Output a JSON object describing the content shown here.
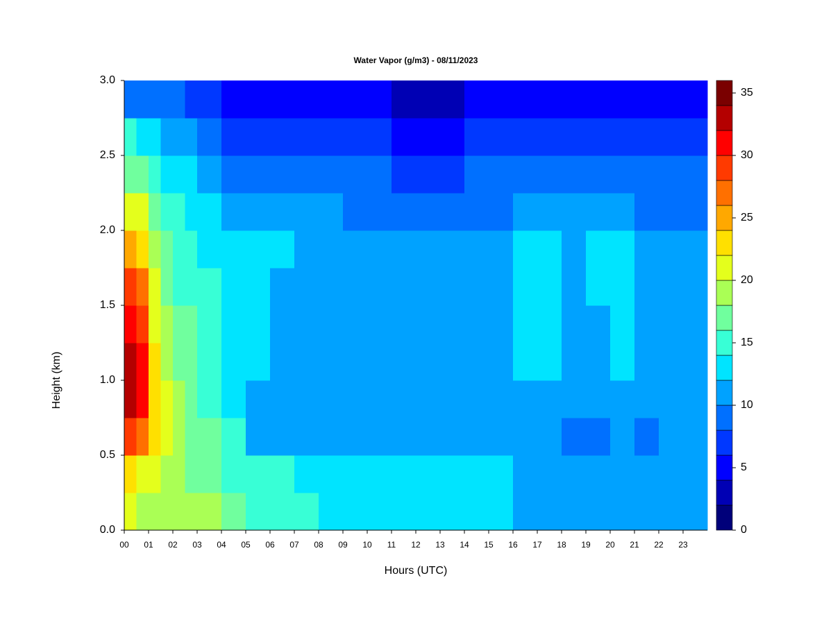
{
  "chart_data": {
    "type": "contour",
    "title": "Water Vapor (g/m3) - 08/11/2023",
    "xlabel": "Hours (UTC)",
    "ylabel": "Height (km)",
    "x": [
      0,
      0.5,
      1,
      1.5,
      2,
      2.5,
      3,
      4,
      5,
      6,
      7,
      8,
      9,
      10,
      11,
      12,
      13,
      14,
      15,
      16,
      17,
      18,
      19,
      20,
      21,
      22,
      23
    ],
    "y": [
      0,
      0.25,
      0.5,
      0.75,
      1.0,
      1.25,
      1.5,
      1.75,
      2.0,
      2.25,
      2.5,
      2.75
    ],
    "z": [
      [
        20,
        19,
        19,
        19,
        18,
        18,
        18,
        17,
        15,
        15,
        14,
        13,
        13,
        13,
        13,
        13,
        13,
        13,
        12,
        11,
        11,
        11,
        11,
        11,
        11,
        11,
        11
      ],
      [
        22,
        21,
        20,
        19,
        18,
        17,
        16,
        15,
        14,
        14,
        13,
        13,
        13,
        13,
        13,
        13,
        13,
        12,
        12,
        11,
        11,
        11,
        11,
        11,
        11,
        11,
        11
      ],
      [
        29,
        27,
        22,
        20,
        18,
        17,
        16,
        14,
        11,
        11,
        11,
        11,
        11,
        11,
        11,
        11,
        11,
        11,
        11,
        11,
        10,
        9,
        9,
        10,
        9,
        10,
        10
      ],
      [
        33,
        31,
        23,
        20,
        18,
        16,
        15,
        13,
        11,
        11,
        11,
        11,
        11,
        11,
        11,
        11,
        11,
        11,
        11,
        11,
        11,
        11,
        11,
        11,
        11,
        11,
        11
      ],
      [
        32,
        30,
        22,
        19,
        17,
        16,
        15,
        13,
        12,
        11,
        11,
        11,
        11,
        11,
        11,
        11,
        11,
        11,
        11,
        12,
        12,
        11,
        11,
        12,
        11,
        11,
        11
      ],
      [
        31,
        29,
        21,
        18,
        16,
        16,
        15,
        13,
        12,
        11,
        11,
        11,
        11,
        11,
        11,
        11,
        11,
        11,
        11,
        12,
        12,
        11,
        11,
        12,
        11,
        11,
        11
      ],
      [
        28,
        27,
        21,
        17,
        15,
        15,
        14,
        13,
        12,
        11,
        11,
        11,
        11,
        11,
        11,
        11,
        11,
        11,
        11,
        12,
        12,
        11,
        12,
        12,
        11,
        11,
        11
      ],
      [
        24,
        23,
        19,
        16,
        15,
        14,
        13,
        12,
        12,
        12,
        11,
        11,
        11,
        11,
        11,
        11,
        11,
        11,
        11,
        12,
        12,
        11,
        12,
        12,
        11,
        11,
        11
      ],
      [
        21,
        20,
        17,
        15,
        14,
        13,
        12,
        11,
        10,
        10,
        10,
        10,
        9,
        9,
        9,
        8,
        9,
        9,
        9,
        10,
        10,
        10,
        10,
        10,
        9,
        9,
        9
      ],
      [
        17,
        16,
        15,
        13,
        13,
        12,
        11,
        9,
        8,
        8,
        8,
        8,
        8,
        8,
        7,
        7,
        7,
        8,
        8,
        8,
        9,
        9,
        8,
        8,
        8,
        8,
        8
      ],
      [
        14,
        13,
        12,
        11,
        11,
        10,
        9,
        7,
        6,
        6,
        6,
        6,
        6,
        6,
        5,
        5,
        5,
        6,
        6,
        7,
        7,
        7,
        7,
        7,
        7,
        7,
        7
      ],
      [
        9,
        9,
        8,
        8,
        8,
        7,
        6,
        5,
        4,
        4,
        4,
        4,
        4,
        4,
        3,
        2,
        3,
        4,
        4,
        5,
        5,
        5,
        5,
        4,
        4,
        4,
        5
      ]
    ],
    "xlim": [
      0,
      24
    ],
    "ylim": [
      0,
      3
    ],
    "xticks": [
      {
        "value": 0,
        "label": "00"
      },
      {
        "value": 1,
        "label": "01"
      },
      {
        "value": 2,
        "label": "02"
      },
      {
        "value": 3,
        "label": "03"
      },
      {
        "value": 4,
        "label": "04"
      },
      {
        "value": 5,
        "label": "05"
      },
      {
        "value": 6,
        "label": "06"
      },
      {
        "value": 7,
        "label": "07"
      },
      {
        "value": 8,
        "label": "08"
      },
      {
        "value": 9,
        "label": "09"
      },
      10,
      11,
      12,
      13,
      14,
      15,
      16,
      17,
      18,
      19,
      20,
      21,
      22,
      23
    ],
    "yticks": [
      {
        "value": 0,
        "label": "0.0"
      },
      0.5,
      {
        "value": 1,
        "label": "1.0"
      },
      1.5,
      {
        "value": 2,
        "label": "2.0"
      },
      2.5,
      {
        "value": 3,
        "label": "3.0"
      }
    ],
    "levels": [
      0,
      2,
      4,
      6,
      8,
      10,
      12,
      14,
      16,
      18,
      20,
      22,
      24,
      26,
      28,
      30,
      32,
      34,
      36
    ],
    "colors": [
      "#00007a",
      "#0000b4",
      "#0000ff",
      "#0038ff",
      "#0070ff",
      "#00a2ff",
      "#00e4ff",
      "#38ffd6",
      "#70ff9e",
      "#aaff55",
      "#e4ff1c",
      "#ffe000",
      "#ffa800",
      "#ff7000",
      "#ff3a00",
      "#ff0000",
      "#b40000",
      "#7a0000"
    ],
    "cticks": [
      0,
      5,
      10,
      15,
      20,
      25,
      30,
      35
    ]
  }
}
